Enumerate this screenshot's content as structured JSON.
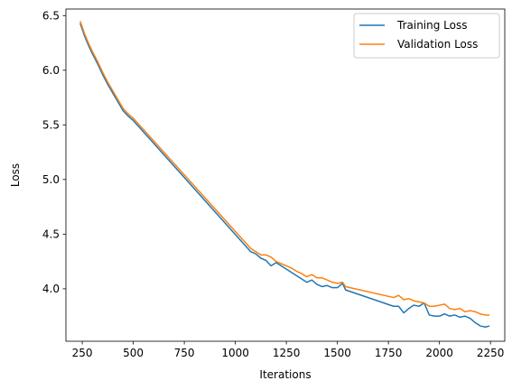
{
  "chart_data": {
    "type": "line",
    "title": "",
    "xlabel": "Iterations",
    "ylabel": "Loss",
    "xlim": [
      170,
      2320
    ],
    "ylim": [
      3.52,
      6.56
    ],
    "xticks": [
      250,
      500,
      750,
      1000,
      1250,
      1500,
      1750,
      2000,
      2250
    ],
    "yticks": [
      4.0,
      4.5,
      5.0,
      5.5,
      6.0,
      6.5
    ],
    "xtick_labels": [
      "250",
      "500",
      "750",
      "1000",
      "1250",
      "1500",
      "1750",
      "2000",
      "2250"
    ],
    "ytick_labels": [
      "4.0",
      "4.5",
      "5.0",
      "5.5",
      "6.0",
      "6.5"
    ],
    "grid": false,
    "legend_position": "top-right",
    "series": [
      {
        "name": "Training Loss",
        "color": "#1f77b4",
        "x": [
          240,
          260,
          280,
          300,
          325,
          350,
          375,
          400,
          425,
          450,
          475,
          500,
          1075,
          1100,
          1125,
          1150,
          1175,
          1200,
          1225,
          1250,
          1275,
          1300,
          1325,
          1350,
          1375,
          1400,
          1425,
          1450,
          1475,
          1500,
          1525,
          1540,
          1775,
          1800,
          1825,
          1850,
          1875,
          1900,
          1925,
          1950,
          1975,
          2000,
          2025,
          2050,
          2075,
          2100,
          2125,
          2150,
          2175,
          2200,
          2225,
          2245
        ],
        "y": [
          6.43,
          6.32,
          6.23,
          6.15,
          6.06,
          5.96,
          5.87,
          5.79,
          5.71,
          5.63,
          5.58,
          5.54,
          4.34,
          4.32,
          4.28,
          4.26,
          4.21,
          4.24,
          4.21,
          4.18,
          4.15,
          4.12,
          4.09,
          4.06,
          4.08,
          4.04,
          4.02,
          4.03,
          4.01,
          4.01,
          4.05,
          3.99,
          3.84,
          3.84,
          3.78,
          3.82,
          3.85,
          3.84,
          3.87,
          3.76,
          3.75,
          3.75,
          3.77,
          3.75,
          3.76,
          3.74,
          3.75,
          3.73,
          3.69,
          3.66,
          3.65,
          3.66
        ]
      },
      {
        "name": "Validation Loss",
        "color": "#ff7f0e",
        "x": [
          240,
          260,
          280,
          300,
          325,
          350,
          375,
          400,
          425,
          450,
          475,
          500,
          1075,
          1100,
          1125,
          1150,
          1175,
          1200,
          1225,
          1250,
          1275,
          1300,
          1325,
          1350,
          1375,
          1400,
          1425,
          1450,
          1475,
          1500,
          1525,
          1540,
          1775,
          1800,
          1825,
          1850,
          1875,
          1900,
          1925,
          1950,
          1975,
          2000,
          2025,
          2050,
          2075,
          2100,
          2125,
          2150,
          2175,
          2200,
          2225,
          2245
        ],
        "y": [
          6.45,
          6.34,
          6.25,
          6.17,
          6.08,
          5.98,
          5.89,
          5.81,
          5.73,
          5.65,
          5.6,
          5.56,
          4.37,
          4.34,
          4.31,
          4.31,
          4.29,
          4.25,
          4.23,
          4.21,
          4.19,
          4.16,
          4.14,
          4.11,
          4.13,
          4.1,
          4.1,
          4.08,
          4.06,
          4.05,
          4.06,
          4.02,
          3.92,
          3.94,
          3.9,
          3.91,
          3.89,
          3.88,
          3.87,
          3.84,
          3.84,
          3.85,
          3.86,
          3.82,
          3.81,
          3.82,
          3.79,
          3.8,
          3.79,
          3.77,
          3.76,
          3.76
        ]
      }
    ]
  }
}
